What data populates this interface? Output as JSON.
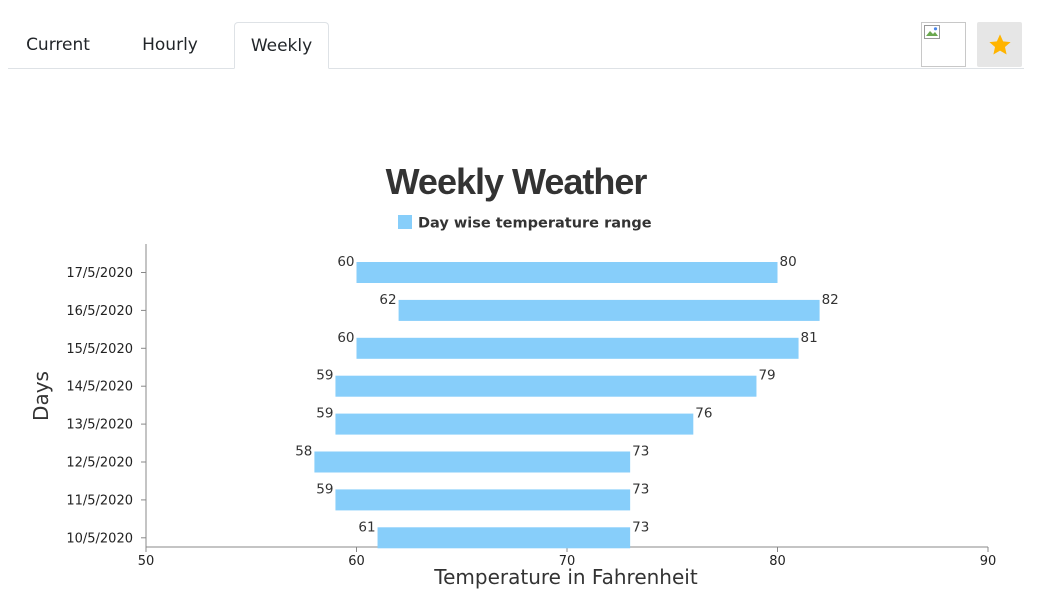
{
  "tabs": [
    {
      "label": "Current",
      "active": false
    },
    {
      "label": "Hourly",
      "active": false
    },
    {
      "label": "Weekly",
      "active": true
    }
  ],
  "controls": {
    "image_icon": "broken-image-icon",
    "favorite_icon": "star-icon",
    "favorite_color": "#ffb400"
  },
  "chart_data": {
    "type": "bar",
    "orientation": "horizontal",
    "title": "Weekly Weather",
    "legend": {
      "label": "Day wise temperature range",
      "position": "top"
    },
    "xlabel": "Temperature in Fahrenheit",
    "ylabel": "Days",
    "xlim": [
      50,
      90
    ],
    "xticks": [
      50,
      60,
      70,
      80,
      90
    ],
    "bar_color": "#87cefa",
    "categories": [
      "17/5/2020",
      "16/5/2020",
      "15/5/2020",
      "14/5/2020",
      "13/5/2020",
      "12/5/2020",
      "11/5/2020",
      "10/5/2020"
    ],
    "series": [
      {
        "name": "Day wise temperature range",
        "ranges": [
          [
            60,
            80
          ],
          [
            62,
            82
          ],
          [
            60,
            81
          ],
          [
            59,
            79
          ],
          [
            59,
            76
          ],
          [
            58,
            73
          ],
          [
            59,
            73
          ],
          [
            61,
            73
          ]
        ]
      }
    ],
    "grid": false
  }
}
